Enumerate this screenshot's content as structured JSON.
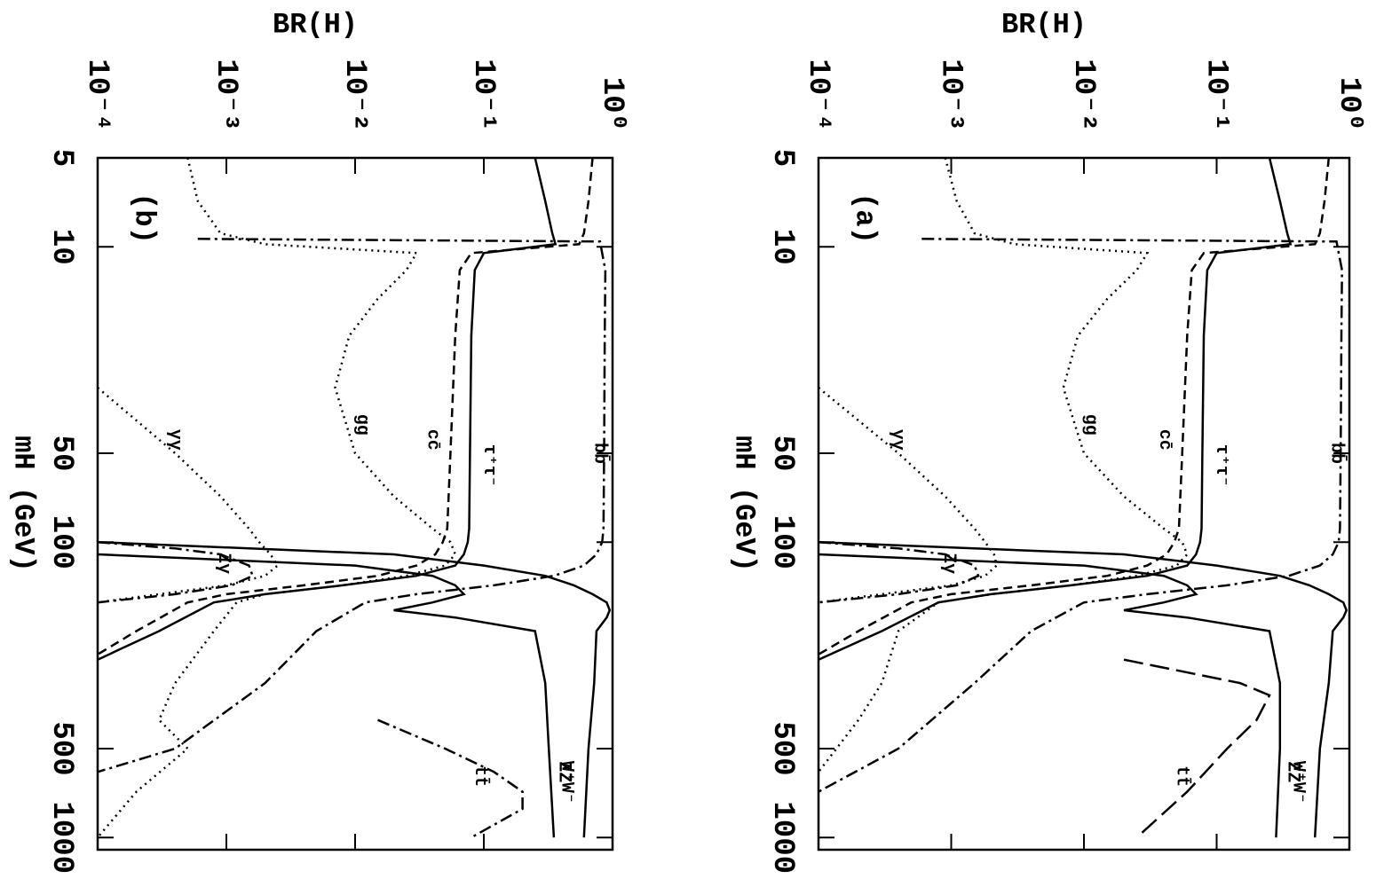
{
  "chart_data": [
    {
      "type": "line",
      "label": "(a)",
      "xlabel": "mH (GeV)",
      "ylabel": "BR(H)",
      "log_x": true,
      "log_y": true,
      "xlim": [
        5,
        1100
      ],
      "xticks": [
        5,
        10,
        50,
        100,
        500,
        1000
      ],
      "ylim": [
        0.0001,
        1
      ],
      "yticks": [
        {
          "value": 0.0001,
          "label": "10⁻⁴"
        },
        {
          "value": 0.001,
          "label": "10⁻³"
        },
        {
          "value": 0.01,
          "label": "10⁻²"
        },
        {
          "value": 0.1,
          "label": "10⁻¹"
        },
        {
          "value": 1,
          "label": "10⁰"
        }
      ],
      "series": [
        {
          "name": "bb̄",
          "color": "#000",
          "dash": "dashdot",
          "x": [
            9.4,
            9.6,
            12,
            20,
            50,
            90,
            100,
            110,
            120,
            130,
            140,
            150,
            160,
            200,
            300,
            500,
            700
          ],
          "values": [
            0.0006,
            0.8,
            0.88,
            0.87,
            0.86,
            0.85,
            0.83,
            0.75,
            0.6,
            0.35,
            0.12,
            0.03,
            0.01,
            0.004,
            0.0015,
            0.0004,
            0.0001
          ]
        },
        {
          "name": "τ⁺τ⁻",
          "color": "#000",
          "dash": "solid",
          "x": [
            5,
            7,
            9,
            9.8,
            10.5,
            12,
            20,
            50,
            90,
            100,
            110,
            120,
            130,
            140,
            150,
            160,
            200,
            250
          ],
          "values": [
            0.25,
            0.3,
            0.34,
            0.36,
            0.1,
            0.085,
            0.08,
            0.078,
            0.077,
            0.075,
            0.07,
            0.06,
            0.03,
            0.008,
            0.002,
            0.0008,
            0.0003,
            0.0001
          ]
        },
        {
          "name": "cc̄",
          "color": "#000",
          "dash": "dashed",
          "x": [
            5,
            7,
            9,
            9.8,
            10.5,
            12,
            20,
            50,
            90,
            100,
            110,
            120,
            130,
            140,
            150,
            160,
            200,
            240
          ],
          "values": [
            0.7,
            0.65,
            0.6,
            0.55,
            0.08,
            0.065,
            0.06,
            0.055,
            0.052,
            0.048,
            0.042,
            0.03,
            0.015,
            0.004,
            0.001,
            0.0005,
            0.0002,
            0.0001
          ]
        },
        {
          "name": "gg",
          "color": "#000",
          "dash": "dotted",
          "x": [
            5,
            7,
            9,
            9.8,
            10.5,
            12,
            15,
            20,
            30,
            50,
            70,
            90,
            100,
            110,
            120,
            130,
            140,
            150,
            160,
            200,
            300,
            400,
            600
          ],
          "values": [
            0.0009,
            0.0011,
            0.0015,
            0.003,
            0.03,
            0.025,
            0.015,
            0.009,
            0.007,
            0.01,
            0.02,
            0.04,
            0.055,
            0.06,
            0.05,
            0.025,
            0.008,
            0.002,
            0.0008,
            0.0004,
            0.0003,
            0.0002,
            0.0001
          ]
        },
        {
          "name": "γγ",
          "color": "#000",
          "dash": "dotted",
          "x": [
            30,
            50,
            70,
            90,
            100,
            110,
            120,
            130,
            140,
            150,
            160
          ],
          "values": [
            0.0001,
            0.0004,
            0.0009,
            0.0015,
            0.0018,
            0.0021,
            0.0022,
            0.0018,
            0.001,
            0.0003,
            0.0001
          ]
        },
        {
          "name": "Zγ",
          "color": "#000",
          "dash": "dashdot",
          "x": [
            100,
            105,
            110,
            120,
            130,
            140,
            150,
            160
          ],
          "values": [
            0.0001,
            0.0004,
            0.0009,
            0.0015,
            0.0016,
            0.0011,
            0.0004,
            0.0001
          ]
        },
        {
          "name": "W⁺W⁻",
          "color": "#000",
          "dash": "solid",
          "x": [
            100,
            110,
            120,
            130,
            140,
            150,
            160,
            170,
            180,
            200,
            300,
            500,
            1000
          ],
          "values": [
            0.0001,
            0.02,
            0.1,
            0.3,
            0.5,
            0.7,
            0.9,
            0.95,
            0.9,
            0.75,
            0.7,
            0.6,
            0.55
          ]
        },
        {
          "name": "ZZ",
          "color": "#000",
          "dash": "solid",
          "x": [
            110,
            120,
            130,
            140,
            150,
            160,
            170,
            180,
            200,
            300,
            500,
            1000
          ],
          "values": [
            0.0001,
            0.01,
            0.04,
            0.06,
            0.07,
            0.04,
            0.02,
            0.06,
            0.25,
            0.3,
            0.3,
            0.28
          ]
        },
        {
          "name": "tt̄",
          "color": "#000",
          "dash": "longdash",
          "x": [
            250,
            300,
            330,
            400,
            500,
            700,
            1000
          ],
          "values": [
            0.02,
            0.15,
            0.25,
            0.2,
            0.12,
            0.06,
            0.025
          ]
        }
      ]
    },
    {
      "type": "line",
      "label": "(b)",
      "xlabel": "mH (GeV)",
      "ylabel": "BR(H)",
      "log_x": true,
      "log_y": true,
      "xlim": [
        5,
        1100
      ],
      "xticks": [
        5,
        10,
        50,
        100,
        500,
        1000
      ],
      "ylim": [
        0.0001,
        1
      ],
      "yticks": [
        {
          "value": 0.0001,
          "label": "10⁻⁴"
        },
        {
          "value": 0.001,
          "label": "10⁻³"
        },
        {
          "value": 0.01,
          "label": "10⁻²"
        },
        {
          "value": 0.1,
          "label": "10⁻¹"
        },
        {
          "value": 1,
          "label": "10⁰"
        }
      ],
      "series": [
        {
          "name": "bb̄",
          "color": "#000",
          "dash": "dashdot",
          "x": [
            9.4,
            9.6,
            12,
            20,
            50,
            90,
            100,
            110,
            120,
            130,
            140,
            150,
            160,
            200,
            300,
            500,
            600
          ],
          "values": [
            0.0006,
            0.8,
            0.88,
            0.87,
            0.86,
            0.85,
            0.83,
            0.75,
            0.6,
            0.35,
            0.12,
            0.03,
            0.012,
            0.005,
            0.002,
            0.0004,
            0.0001
          ]
        },
        {
          "name": "τ⁺τ⁻",
          "color": "#000",
          "dash": "solid",
          "x": [
            5,
            7,
            9,
            9.8,
            10.5,
            12,
            20,
            50,
            90,
            100,
            110,
            120,
            130,
            140,
            150,
            160,
            200,
            250
          ],
          "values": [
            0.25,
            0.3,
            0.34,
            0.36,
            0.1,
            0.085,
            0.08,
            0.078,
            0.077,
            0.075,
            0.07,
            0.06,
            0.03,
            0.008,
            0.002,
            0.0008,
            0.0003,
            0.0001
          ]
        },
        {
          "name": "cc̄",
          "color": "#000",
          "dash": "dashed",
          "x": [
            5,
            7,
            9,
            9.8,
            10.5,
            12,
            20,
            50,
            90,
            100,
            110,
            120,
            130,
            140,
            150,
            160,
            200,
            240
          ],
          "values": [
            0.7,
            0.65,
            0.6,
            0.55,
            0.08,
            0.065,
            0.06,
            0.055,
            0.052,
            0.048,
            0.042,
            0.03,
            0.015,
            0.004,
            0.001,
            0.0005,
            0.0002,
            0.0001
          ]
        },
        {
          "name": "gg",
          "color": "#000",
          "dash": "dotted",
          "x": [
            5,
            7,
            9,
            9.8,
            10.5,
            12,
            15,
            20,
            30,
            50,
            70,
            90,
            100,
            110,
            120,
            130,
            140,
            150,
            160,
            200,
            300,
            400,
            500,
            700,
            1000
          ],
          "values": [
            0.0005,
            0.0006,
            0.0009,
            0.002,
            0.03,
            0.025,
            0.015,
            0.009,
            0.007,
            0.01,
            0.02,
            0.04,
            0.055,
            0.06,
            0.05,
            0.025,
            0.008,
            0.002,
            0.0012,
            0.0008,
            0.0004,
            0.0003,
            0.0005,
            0.0002,
            0.0001
          ]
        },
        {
          "name": "γγ",
          "color": "#000",
          "dash": "dotted",
          "x": [
            30,
            50,
            70,
            90,
            100,
            110,
            120,
            130,
            140,
            150,
            160
          ],
          "values": [
            0.0001,
            0.0004,
            0.0009,
            0.0015,
            0.0018,
            0.0022,
            0.0025,
            0.002,
            0.001,
            0.0003,
            0.0001
          ]
        },
        {
          "name": "Zγ",
          "color": "#000",
          "dash": "dashdot",
          "x": [
            100,
            105,
            110,
            120,
            130,
            140,
            150,
            160
          ],
          "values": [
            0.0001,
            0.0004,
            0.0009,
            0.0015,
            0.0016,
            0.0011,
            0.0004,
            0.0001
          ]
        },
        {
          "name": "W⁺W⁻",
          "color": "#000",
          "dash": "solid",
          "x": [
            100,
            110,
            120,
            130,
            140,
            150,
            160,
            170,
            180,
            200,
            300,
            500,
            1000
          ],
          "values": [
            0.0001,
            0.02,
            0.1,
            0.3,
            0.5,
            0.7,
            0.9,
            0.95,
            0.9,
            0.75,
            0.72,
            0.65,
            0.6
          ]
        },
        {
          "name": "ZZ",
          "color": "#000",
          "dash": "solid",
          "x": [
            110,
            120,
            130,
            140,
            150,
            160,
            170,
            180,
            200,
            300,
            500,
            1000
          ],
          "values": [
            0.0001,
            0.01,
            0.04,
            0.06,
            0.07,
            0.04,
            0.02,
            0.06,
            0.25,
            0.3,
            0.32,
            0.35
          ]
        },
        {
          "name": "tt̄",
          "color": "#000",
          "dash": "dashdot",
          "x": [
            400,
            500,
            600,
            700,
            800,
            1000
          ],
          "values": [
            0.015,
            0.05,
            0.12,
            0.2,
            0.2,
            0.08
          ]
        }
      ]
    }
  ]
}
